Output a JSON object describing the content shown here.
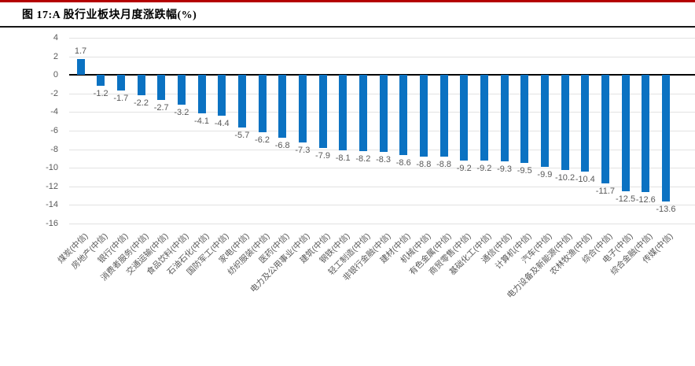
{
  "figure": {
    "title": "图 17:A 股行业板块月度涨跌幅(%)"
  },
  "chart_data": {
    "type": "bar",
    "title": "A 股行业板块月度涨跌幅(%)",
    "xlabel": "",
    "ylabel": "",
    "ylim": [
      -16,
      4
    ],
    "ytick_step": 2,
    "yticks": [
      4,
      2,
      0,
      -2,
      -4,
      -6,
      -8,
      -10,
      -12,
      -14,
      -16
    ],
    "grid": true,
    "legend": "none",
    "categories": [
      "煤炭(中信)",
      "房地产(中信)",
      "银行(中信)",
      "消费者服务(中信)",
      "交通运输(中信)",
      "食品饮料(中信)",
      "石油石化(中信)",
      "国防军工(中信)",
      "家电(中信)",
      "纺织服装(中信)",
      "医药(中信)",
      "电力及公用事业(中信)",
      "建筑(中信)",
      "钢铁(中信)",
      "轻工制造(中信)",
      "非银行金融(中信)",
      "建材(中信)",
      "机械(中信)",
      "有色金属(中信)",
      "商贸零售(中信)",
      "基础化工(中信)",
      "通信(中信)",
      "计算机(中信)",
      "汽车(中信)",
      "电力设备及新能源(中信)",
      "农林牧渔(中信)",
      "综合(中信)",
      "电子(中信)",
      "综合金融(中信)",
      "传媒(中信)"
    ],
    "values": [
      1.7,
      -1.2,
      -1.7,
      -2.2,
      -2.7,
      -3.2,
      -4.1,
      -4.4,
      -5.7,
      -6.2,
      -6.8,
      -7.3,
      -7.9,
      -8.1,
      -8.2,
      -8.3,
      -8.6,
      -8.8,
      -8.8,
      -9.2,
      -9.2,
      -9.3,
      -9.5,
      -9.9,
      -10.2,
      -10.4,
      -11.7,
      -12.5,
      -12.6,
      -13.6
    ]
  },
  "colors": {
    "bar": "#0b72c2",
    "gridline": "#e2e2e2",
    "zero_line": "#000000",
    "tick_label": "#595959",
    "value_label": "#595959",
    "category_label": "#595959",
    "top_rule": "#b40000",
    "title_divider": "#161616"
  }
}
